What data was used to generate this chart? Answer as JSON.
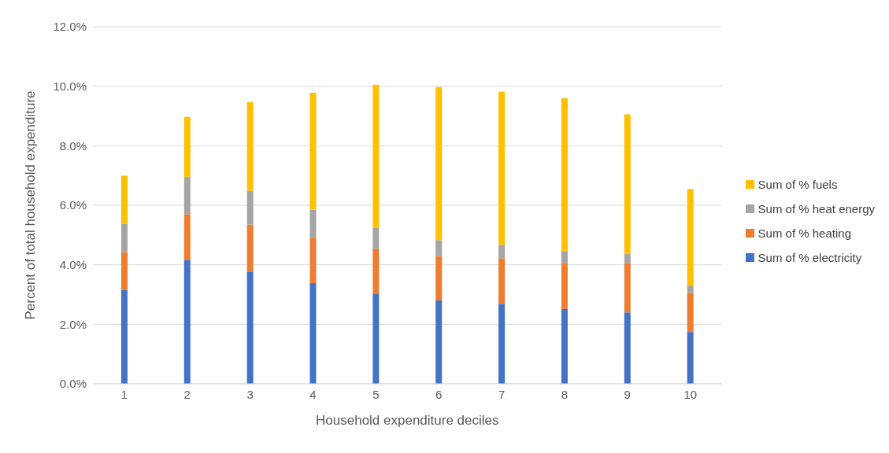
{
  "chart_data": {
    "type": "bar",
    "stacked": true,
    "xlabel": "Household expenditure deciles",
    "ylabel": "Percent of total household expenditure",
    "categories": [
      "1",
      "2",
      "3",
      "4",
      "5",
      "6",
      "7",
      "8",
      "9",
      "10"
    ],
    "series": [
      {
        "name": "Sum of % electricity",
        "color": "#4472c4",
        "values": [
          3.16,
          4.17,
          3.77,
          3.38,
          3.03,
          2.8,
          2.69,
          2.51,
          2.4,
          1.74
        ]
      },
      {
        "name": "Sum of % heating",
        "color": "#ed7d31",
        "values": [
          1.27,
          1.53,
          1.58,
          1.53,
          1.51,
          1.5,
          1.53,
          1.55,
          1.66,
          1.32
        ]
      },
      {
        "name": "Sum of % heat energy",
        "color": "#a5a5a5",
        "values": [
          0.95,
          1.26,
          1.14,
          0.94,
          0.71,
          0.53,
          0.45,
          0.4,
          0.32,
          0.24
        ]
      },
      {
        "name": "Sum of % fuels",
        "color": "#ffc000",
        "values": [
          1.61,
          2.01,
          2.98,
          3.93,
          4.8,
          5.14,
          5.14,
          5.14,
          4.67,
          3.24
        ]
      }
    ],
    "ylim": [
      0,
      12
    ],
    "yticks": [
      {
        "value": 0,
        "label": "0.0%"
      },
      {
        "value": 2,
        "label": "2.0%"
      },
      {
        "value": 4,
        "label": "4.0%"
      },
      {
        "value": 6,
        "label": "6.0%"
      },
      {
        "value": 8,
        "label": "8.0%"
      },
      {
        "value": 10,
        "label": "10.0%"
      },
      {
        "value": 12,
        "label": "12.0%"
      }
    ],
    "grid": "y",
    "legend": "right"
  }
}
